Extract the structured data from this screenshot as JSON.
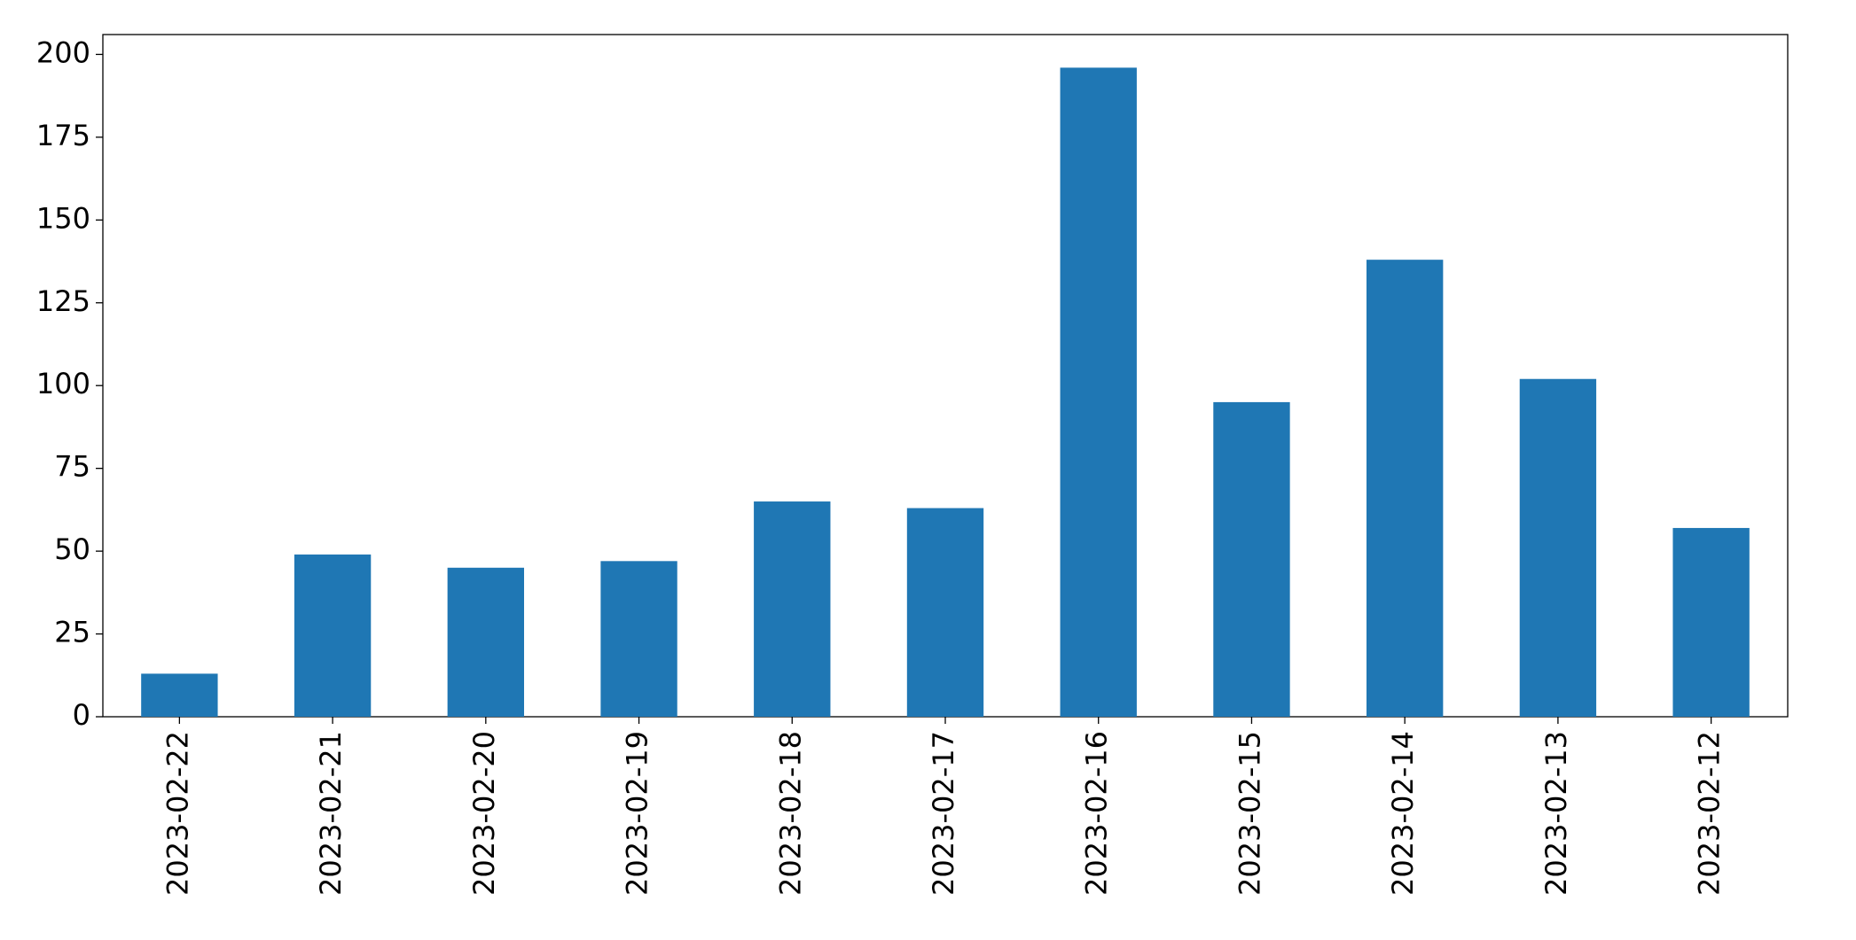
{
  "chart_data": {
    "type": "bar",
    "categories": [
      "2023-02-22",
      "2023-02-21",
      "2023-02-20",
      "2023-02-19",
      "2023-02-18",
      "2023-02-17",
      "2023-02-16",
      "2023-02-15",
      "2023-02-14",
      "2023-02-13",
      "2023-02-12"
    ],
    "values": [
      13,
      49,
      45,
      47,
      65,
      63,
      196,
      95,
      138,
      102,
      57
    ],
    "color": "#1f77b4",
    "ylim": [
      0,
      206
    ],
    "yticks": [
      0,
      25,
      50,
      75,
      100,
      125,
      150,
      175,
      200
    ],
    "grid": false
  }
}
